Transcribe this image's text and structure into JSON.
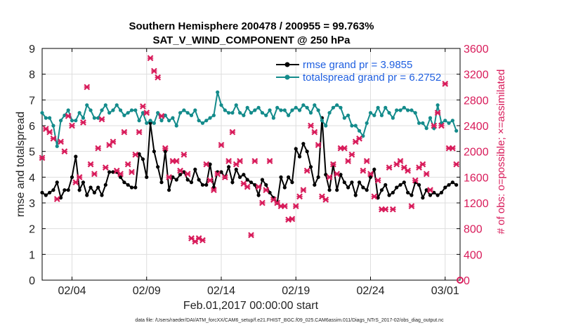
{
  "chart_data": {
    "type": "line",
    "title_line1": "Southern Hemisphere 200478 / 200955 = 99.763%",
    "title_line2": "SAT_V_WIND_COMPONENT @ 250 hPa",
    "xlabel": "Feb.01,2017 00:00:00 start",
    "ylabel_left": "rmse and totalspread",
    "ylabel_right": "# of obs: o=possible; ×=assimilated",
    "footer": "data file: /Users/raeder/DAI/ATM_forcXX/CAM6_setup/f.e21.FHIST_BGC.f09_025.CAM6assim.011/Diags_NTrS_2017-02/obs_diag_output.nc",
    "xlim": [
      1,
      29
    ],
    "x_ticks": [
      3,
      8,
      13,
      18,
      23,
      28
    ],
    "x_tick_labels": [
      "02/04",
      "02/09",
      "02/14",
      "02/19",
      "02/24",
      "03/01"
    ],
    "ylim_left": [
      0,
      9
    ],
    "y_ticks_left": [
      "0",
      "1",
      "2",
      "3",
      "4",
      "5",
      "6",
      "7",
      "8",
      "9"
    ],
    "ylim_right": [
      0,
      3600
    ],
    "y_ticks_right": [
      "0",
      "400",
      "800",
      "1200",
      "1600",
      "2000",
      "2400",
      "2800",
      "3200",
      "3600"
    ],
    "grid": true,
    "legend_position": "top-right",
    "series": [
      {
        "name": "rmse grand pr = 3.9855",
        "color": "#000000",
        "axis": "left",
        "x": [
          1.0,
          1.25,
          1.5,
          1.75,
          2.0,
          2.25,
          2.5,
          2.75,
          3.0,
          3.25,
          3.5,
          3.75,
          4.0,
          4.25,
          4.5,
          4.75,
          5.0,
          5.25,
          5.5,
          5.75,
          6.0,
          6.25,
          6.5,
          6.75,
          7.0,
          7.25,
          7.5,
          7.75,
          8.0,
          8.25,
          8.5,
          8.75,
          9.0,
          9.25,
          9.5,
          9.75,
          10.0,
          10.25,
          10.5,
          10.75,
          11.0,
          11.25,
          11.5,
          11.75,
          12.0,
          12.25,
          12.5,
          12.75,
          13.0,
          13.25,
          13.5,
          13.75,
          14.0,
          14.25,
          14.5,
          14.75,
          15.0,
          15.25,
          15.5,
          15.75,
          16.0,
          16.25,
          16.5,
          16.75,
          17.0,
          17.25,
          17.5,
          17.75,
          18.0,
          18.25,
          18.5,
          18.75,
          19.0,
          19.25,
          19.5,
          19.75,
          20.0,
          20.25,
          20.5,
          20.75,
          21.0,
          21.25,
          21.5,
          21.75,
          22.0,
          22.25,
          22.5,
          22.75,
          23.0,
          23.25,
          23.5,
          23.75,
          24.0,
          24.25,
          24.5,
          24.75,
          25.0,
          25.25,
          25.5,
          25.75,
          26.0,
          26.25,
          26.5,
          26.75,
          27.0,
          27.25,
          27.5,
          27.75,
          28.0,
          28.25,
          28.5,
          28.75
        ],
        "y": [
          3.4,
          3.3,
          3.4,
          3.5,
          3.8,
          3.2,
          3.5,
          3.5,
          4.0,
          4.8,
          3.5,
          3.8,
          3.3,
          3.6,
          3.4,
          3.6,
          3.3,
          3.7,
          4.2,
          4.2,
          4.2,
          4.0,
          3.8,
          3.7,
          3.6,
          3.6,
          4.9,
          4.7,
          4.0,
          6.1,
          5.0,
          4.4,
          3.8,
          5.0,
          3.5,
          4.0,
          3.9,
          4.1,
          4.2,
          3.9,
          3.8,
          4.3,
          3.9,
          3.7,
          3.7,
          4.5,
          3.6,
          4.2,
          4.2,
          4.0,
          4.4,
          3.8,
          4.3,
          4.0,
          4.1,
          3.9,
          3.8,
          3.7,
          3.3,
          3.9,
          3.7,
          3.4,
          3.2,
          3.0,
          4.0,
          3.6,
          4.0,
          3.8,
          5.1,
          4.8,
          5.3,
          5.0,
          4.4,
          3.7,
          4.0,
          6.3,
          4.1,
          3.5,
          4.5,
          3.5,
          4.1,
          3.8,
          3.6,
          3.8,
          3.3,
          3.8,
          3.6,
          3.5,
          4.0,
          4.3,
          3.2,
          3.5,
          3.7,
          3.3,
          3.4,
          3.6,
          3.7,
          3.8,
          3.4,
          3.3,
          3.8,
          3.7,
          3.2,
          3.5,
          3.3,
          3.4,
          3.3,
          3.4,
          3.6,
          3.7,
          3.8,
          3.7
        ]
      },
      {
        "name": "totalspread grand pr = 6.2752",
        "color": "#138b8b",
        "axis": "left",
        "x": [
          1.0,
          1.25,
          1.5,
          1.75,
          2.0,
          2.25,
          2.5,
          2.75,
          3.0,
          3.25,
          3.5,
          3.75,
          4.0,
          4.25,
          4.5,
          4.75,
          5.0,
          5.25,
          5.5,
          5.75,
          6.0,
          6.25,
          6.5,
          6.75,
          7.0,
          7.25,
          7.5,
          7.75,
          8.0,
          8.25,
          8.5,
          8.75,
          9.0,
          9.25,
          9.5,
          9.75,
          10.0,
          10.25,
          10.5,
          10.75,
          11.0,
          11.25,
          11.5,
          11.75,
          12.0,
          12.25,
          12.5,
          12.75,
          13.0,
          13.25,
          13.5,
          13.75,
          14.0,
          14.25,
          14.5,
          14.75,
          15.0,
          15.25,
          15.5,
          15.75,
          16.0,
          16.25,
          16.5,
          16.75,
          17.0,
          17.25,
          17.5,
          17.75,
          18.0,
          18.25,
          18.5,
          18.75,
          19.0,
          19.25,
          19.5,
          19.75,
          20.0,
          20.25,
          20.5,
          20.75,
          21.0,
          21.25,
          21.5,
          21.75,
          22.0,
          22.25,
          22.5,
          22.75,
          23.0,
          23.25,
          23.5,
          23.75,
          24.0,
          24.25,
          24.5,
          24.75,
          25.0,
          25.25,
          25.5,
          25.75,
          26.0,
          26.25,
          26.5,
          26.75,
          27.0,
          27.25,
          27.5,
          27.75,
          28.0,
          28.25,
          28.5,
          28.75
        ],
        "y": [
          6.5,
          6.3,
          6.3,
          6.0,
          5.2,
          6.2,
          6.4,
          6.6,
          6.2,
          6.2,
          6.5,
          6.3,
          6.8,
          6.6,
          6.3,
          6.3,
          6.6,
          6.8,
          6.5,
          6.6,
          6.8,
          6.6,
          6.4,
          6.5,
          6.6,
          6.6,
          6.2,
          6.5,
          6.1,
          6.2,
          6.1,
          6.5,
          6.2,
          6.4,
          6.2,
          6.3,
          6.0,
          6.5,
          6.6,
          6.5,
          6.4,
          6.6,
          6.2,
          6.1,
          6.2,
          6.3,
          6.4,
          7.3,
          6.8,
          6.6,
          6.5,
          6.5,
          6.8,
          6.5,
          6.4,
          6.7,
          6.5,
          6.6,
          6.7,
          6.5,
          6.4,
          6.6,
          6.3,
          6.7,
          6.6,
          6.6,
          6.4,
          6.6,
          6.7,
          6.6,
          6.8,
          6.7,
          6.5,
          6.8,
          6.6,
          6.2,
          6.0,
          6.5,
          6.7,
          6.8,
          6.7,
          6.3,
          6.4,
          6.0,
          6.0,
          5.8,
          5.6,
          6.1,
          6.5,
          6.4,
          6.7,
          6.4,
          6.7,
          6.5,
          6.3,
          6.6,
          6.6,
          6.7,
          6.6,
          6.6,
          6.5,
          6.1,
          6.1,
          5.9,
          6.3,
          5.9,
          6.8,
          6.1,
          6.2,
          6.1,
          6.2,
          5.8
        ]
      },
      {
        "name": "",
        "color": "#d81b5a",
        "axis": "right",
        "marker": "x",
        "x": [
          1.0,
          1.25,
          1.5,
          1.75,
          2.0,
          2.25,
          2.5,
          2.75,
          3.0,
          3.25,
          3.5,
          3.75,
          4.0,
          4.25,
          4.5,
          4.75,
          5.0,
          5.25,
          5.5,
          5.75,
          6.0,
          6.25,
          6.5,
          6.75,
          7.0,
          7.25,
          7.5,
          7.75,
          8.0,
          8.25,
          8.5,
          8.75,
          9.0,
          9.25,
          9.5,
          9.75,
          10.0,
          10.25,
          10.5,
          10.75,
          11.0,
          11.25,
          11.5,
          11.75,
          12.0,
          12.25,
          12.5,
          12.75,
          13.0,
          13.25,
          13.5,
          13.75,
          14.0,
          14.25,
          14.5,
          14.75,
          15.0,
          15.25,
          15.5,
          15.75,
          16.0,
          16.25,
          16.5,
          16.75,
          17.0,
          17.25,
          17.5,
          17.75,
          18.0,
          18.25,
          18.5,
          18.75,
          19.0,
          19.25,
          19.5,
          19.75,
          20.0,
          20.25,
          20.5,
          20.75,
          21.0,
          21.25,
          21.5,
          21.75,
          22.0,
          22.25,
          22.5,
          22.75,
          23.0,
          23.25,
          23.5,
          23.75,
          24.0,
          24.25,
          24.5,
          24.75,
          25.0,
          25.25,
          25.5,
          25.75,
          26.0,
          26.25,
          26.5,
          26.75,
          27.0,
          27.25,
          27.5,
          27.75,
          28.0,
          28.25,
          28.5,
          28.75
        ],
        "y": [
          1900,
          2350,
          2300,
          2200,
          1260,
          2150,
          2000,
          2550,
          2400,
          1520,
          1600,
          2450,
          3000,
          1800,
          1650,
          2050,
          2500,
          1750,
          2100,
          2150,
          1700,
          1650,
          2300,
          1800,
          1680,
          1950,
          2300,
          2700,
          2600,
          3450,
          3250,
          3150,
          2550,
          2050,
          1600,
          1850,
          1850,
          1700,
          1950,
          1650,
          650,
          600,
          650,
          620,
          1800,
          1550,
          1400,
          1650,
          2100,
          1600,
          1850,
          2300,
          1800,
          1850,
          1500,
          1450,
          700,
          1850,
          1450,
          1200,
          1400,
          1850,
          1250,
          1200,
          1150,
          1150,
          940,
          950,
          1150,
          1300,
          1400,
          1700,
          2400,
          2300,
          2100,
          1300,
          1250,
          1600,
          1800,
          1650,
          2050,
          2050,
          1850,
          1950,
          2150,
          2200,
          1700,
          1850,
          1650,
          1300,
          1550,
          1100,
          1100,
          1750,
          1100,
          1800,
          1850,
          1750,
          1700,
          1150,
          1550,
          1750,
          1800,
          1650,
          1400,
          2400,
          2600,
          2400,
          3050,
          2050,
          2050,
          1800
        ]
      }
    ]
  }
}
